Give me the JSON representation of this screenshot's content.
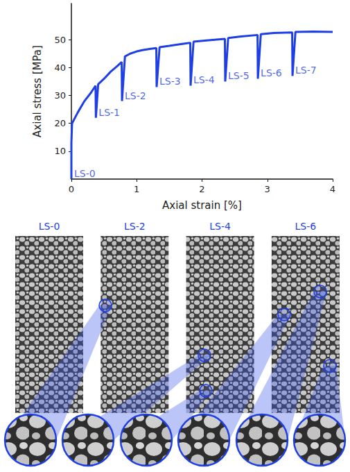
{
  "chart_data": {
    "type": "line",
    "x_label": "Axial strain [%]",
    "y_label": "Axial stress [MPa]",
    "x": [
      0,
      0,
      0.01,
      0.1,
      0.2,
      0.3,
      0.37,
      0.375,
      0.41,
      0.5,
      0.6,
      0.7,
      0.77,
      0.775,
      0.82,
      0.9,
      1.0,
      1.1,
      1.2,
      1.3,
      1.305,
      1.35,
      1.5,
      1.7,
      1.82,
      1.825,
      1.87,
      2.1,
      2.35,
      2.355,
      2.4,
      2.6,
      2.85,
      2.855,
      2.9,
      3.1,
      3.38,
      3.385,
      3.43,
      3.7,
      4.0
    ],
    "values": [
      0,
      13,
      20,
      24,
      28,
      31,
      33.5,
      22,
      34,
      36,
      38.5,
      40.5,
      42,
      28,
      44,
      45,
      45.8,
      46.3,
      46.7,
      47,
      33,
      47.3,
      47.8,
      48.5,
      48.9,
      33.5,
      49.3,
      49.8,
      50.3,
      35,
      50.6,
      51.2,
      51.7,
      36,
      52,
      52.4,
      52.6,
      37,
      52.8,
      52.9,
      52.8
    ],
    "color": "#1f3fe6",
    "line_style": "solid",
    "xlim": [
      0,
      4
    ],
    "xticks": [
      0,
      1,
      2,
      3,
      4
    ],
    "ylim": [
      0,
      63
    ],
    "yticks": [
      10,
      20,
      30,
      40,
      50
    ],
    "grid": false,
    "annotations": [
      {
        "text": "LS-0",
        "x": 0,
        "y": 0
      },
      {
        "text": "LS-1",
        "x": 0.375,
        "y": 22
      },
      {
        "text": "LS-2",
        "x": 0.775,
        "y": 28
      },
      {
        "text": "LS-3",
        "x": 1.305,
        "y": 33
      },
      {
        "text": "LS-4",
        "x": 1.825,
        "y": 33.5
      },
      {
        "text": "LS-5",
        "x": 2.355,
        "y": 35
      },
      {
        "text": "LS-6",
        "x": 2.855,
        "y": 36
      },
      {
        "text": "LS-7",
        "x": 3.385,
        "y": 37
      }
    ]
  },
  "panels": {
    "titles": [
      "LS-0",
      "LS-2",
      "LS-4",
      "LS-6"
    ]
  }
}
